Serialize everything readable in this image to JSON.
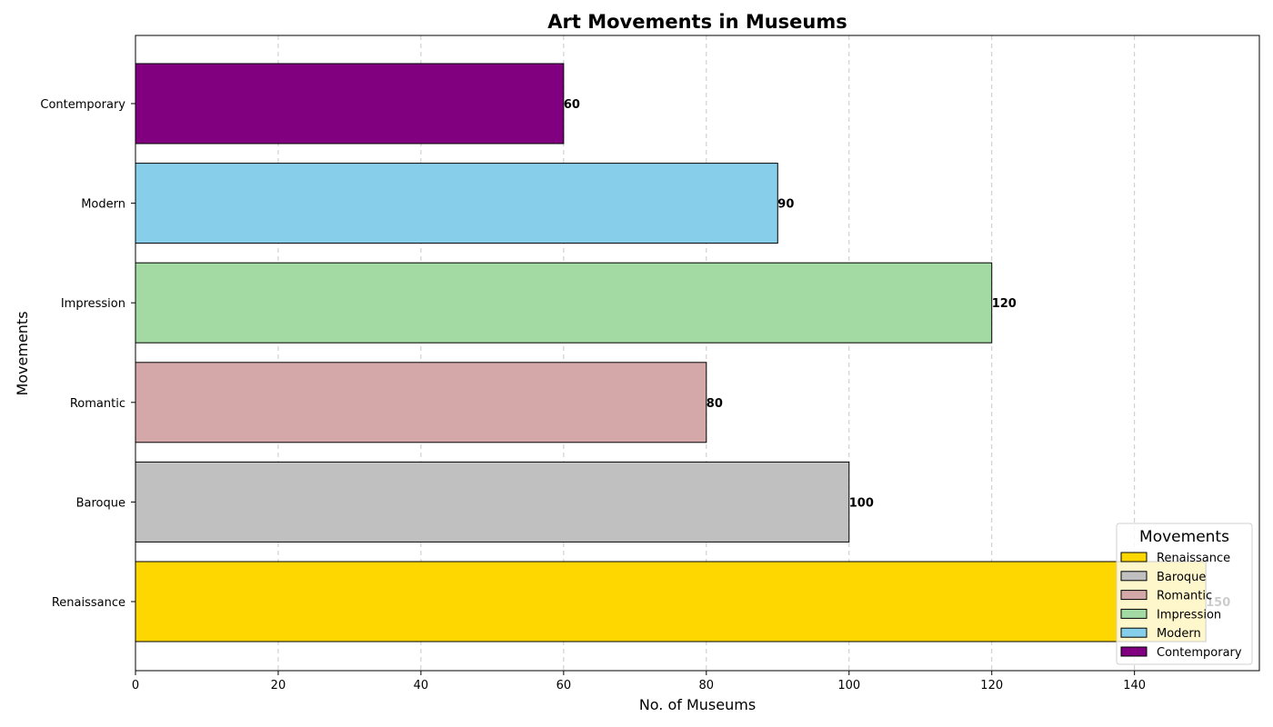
{
  "chart_data": {
    "type": "bar",
    "orientation": "horizontal",
    "title": "Art Movements in Museums",
    "xlabel": "No. of Museums",
    "ylabel": "Movements",
    "categories": [
      "Renaissance",
      "Baroque",
      "Romantic",
      "Impression",
      "Modern",
      "Contemporary"
    ],
    "values": [
      150,
      100,
      80,
      120,
      90,
      60
    ],
    "colors": [
      "#FFD700",
      "#C0C0C0",
      "#D4A8A8",
      "#A3D9A3",
      "#87CEEB",
      "#800080"
    ],
    "xlim": [
      0,
      157.5
    ],
    "xticks": [
      0,
      20,
      40,
      60,
      80,
      100,
      120,
      140
    ],
    "grid": "x-dashed",
    "legend": {
      "title": "Movements",
      "placement": "lower-right",
      "entries": [
        "Renaissance",
        "Baroque",
        "Romantic",
        "Impression",
        "Modern",
        "Contemporary"
      ]
    }
  }
}
